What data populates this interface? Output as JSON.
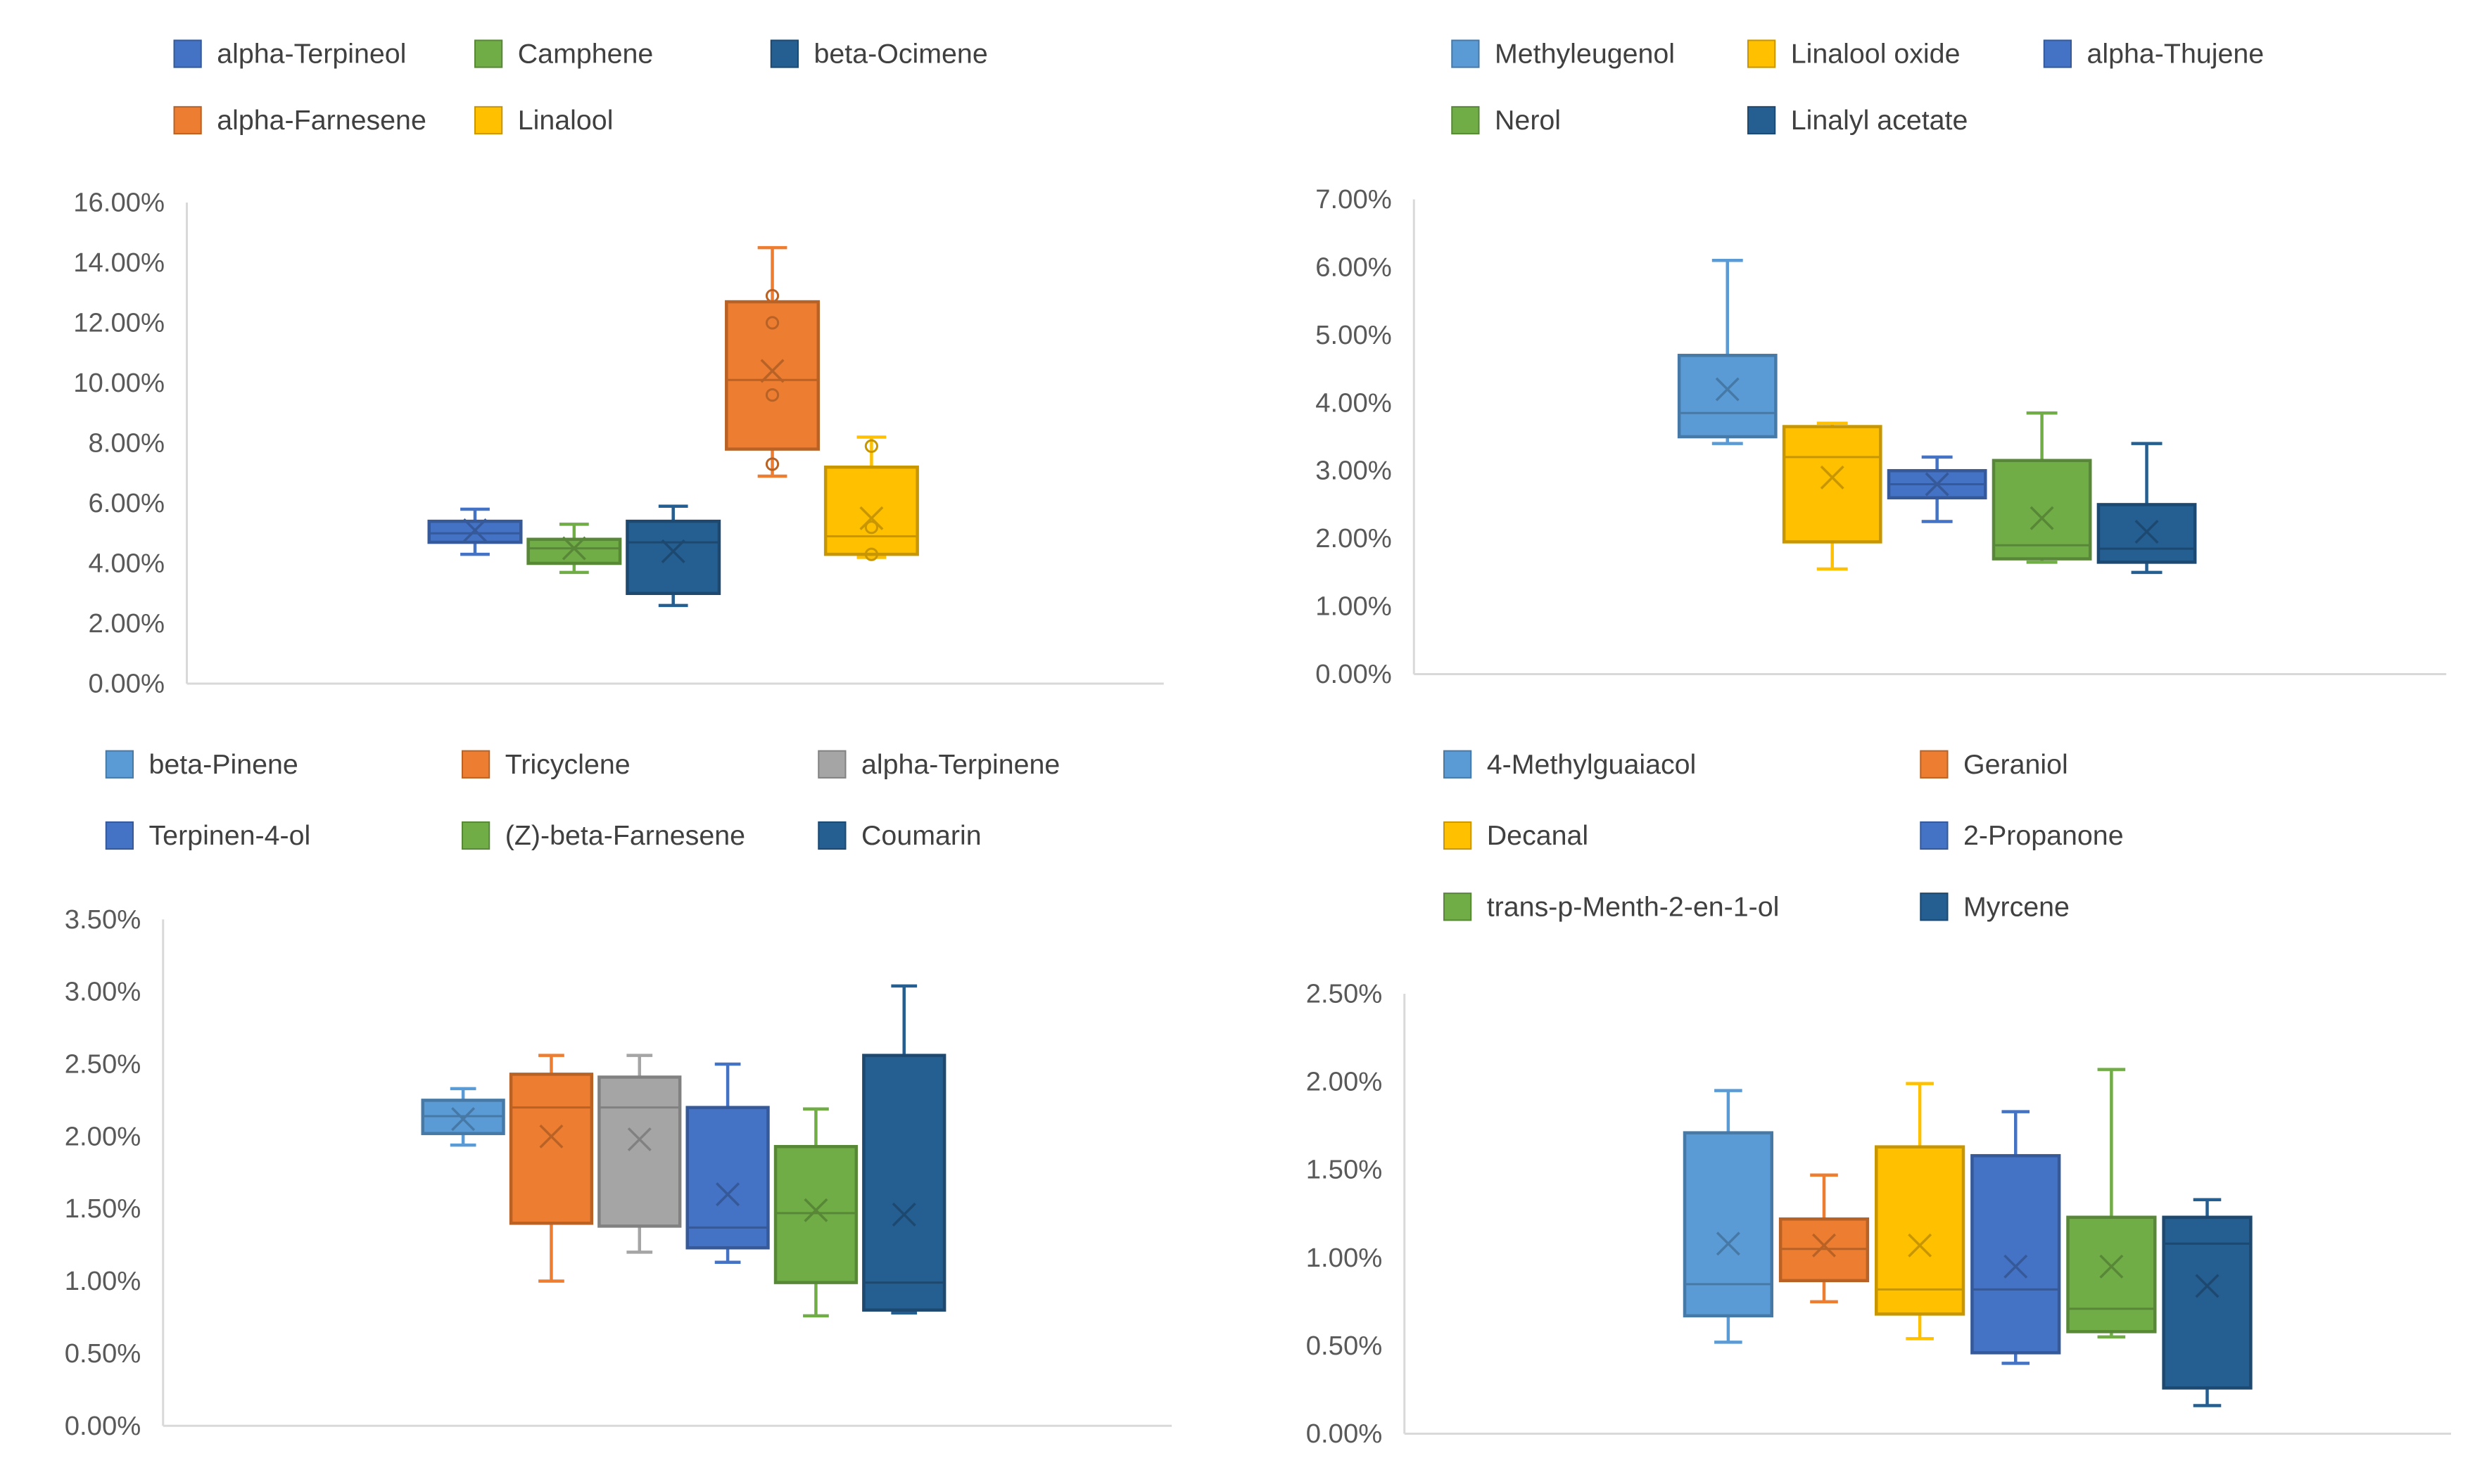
{
  "colors": {
    "axis": "#d9d9d9",
    "tick_text": "#595959",
    "legend_text": "#404040",
    "light_blue": "#5b9bd5",
    "orange": "#ed7d31",
    "gray": "#a5a5a5",
    "gold": "#ffc000",
    "blue": "#4472c4",
    "green": "#70ad47",
    "navy": "#255e91"
  },
  "chart_data": [
    {
      "type": "boxplot",
      "legend_position": "top",
      "grid": false,
      "ylim": [
        0,
        0.16
      ],
      "yticks": [
        "0.00%",
        "2.00%",
        "4.00%",
        "6.00%",
        "8.00%",
        "10.00%",
        "12.00%",
        "14.00%",
        "16.00%"
      ],
      "series": [
        {
          "name": "alpha-Terpineol",
          "color": "#4472c4",
          "min": 0.043,
          "q1": 0.047,
          "median": 0.05,
          "q3": 0.054,
          "max": 0.058,
          "mean": 0.051,
          "outliers": []
        },
        {
          "name": "Camphene",
          "color": "#70ad47",
          "min": 0.037,
          "q1": 0.04,
          "median": 0.045,
          "q3": 0.048,
          "max": 0.053,
          "mean": 0.045,
          "outliers": []
        },
        {
          "name": "beta-Ocimene",
          "color": "#255e91",
          "min": 0.026,
          "q1": 0.03,
          "median": 0.047,
          "q3": 0.054,
          "max": 0.059,
          "mean": 0.044,
          "outliers": []
        },
        {
          "name": "alpha-Farnesene",
          "color": "#ed7d31",
          "min": 0.069,
          "q1": 0.078,
          "median": 0.101,
          "q3": 0.127,
          "max": 0.145,
          "mean": 0.104,
          "outliers": [
            0.073,
            0.096,
            0.12,
            0.129
          ]
        },
        {
          "name": "Linalool",
          "color": "#ffc000",
          "min": 0.042,
          "q1": 0.043,
          "median": 0.049,
          "q3": 0.072,
          "max": 0.082,
          "mean": 0.055,
          "outliers": [
            0.043,
            0.052,
            0.079
          ]
        }
      ]
    },
    {
      "type": "boxplot",
      "legend_position": "top",
      "grid": false,
      "ylim": [
        0,
        0.07
      ],
      "yticks": [
        "0.00%",
        "1.00%",
        "2.00%",
        "3.00%",
        "4.00%",
        "5.00%",
        "6.00%",
        "7.00%"
      ],
      "series": [
        {
          "name": "Methyleugenol",
          "color": "#5b9bd5",
          "min": 0.034,
          "q1": 0.035,
          "median": 0.0385,
          "q3": 0.047,
          "max": 0.061,
          "mean": 0.042,
          "outliers": []
        },
        {
          "name": "Linalool oxide",
          "color": "#ffc000",
          "min": 0.0155,
          "q1": 0.0195,
          "median": 0.032,
          "q3": 0.0365,
          "max": 0.037,
          "mean": 0.029,
          "outliers": []
        },
        {
          "name": "alpha-Thujene",
          "color": "#4472c4",
          "min": 0.0225,
          "q1": 0.026,
          "median": 0.028,
          "q3": 0.03,
          "max": 0.032,
          "mean": 0.028,
          "outliers": []
        },
        {
          "name": "Nerol",
          "color": "#70ad47",
          "min": 0.0165,
          "q1": 0.017,
          "median": 0.019,
          "q3": 0.0315,
          "max": 0.0385,
          "mean": 0.023,
          "outliers": []
        },
        {
          "name": "Linalyl acetate",
          "color": "#255e91",
          "min": 0.015,
          "q1": 0.0165,
          "median": 0.0185,
          "q3": 0.025,
          "max": 0.034,
          "mean": 0.021,
          "outliers": []
        }
      ]
    },
    {
      "type": "boxplot",
      "legend_position": "top",
      "grid": false,
      "ylim": [
        0,
        0.035
      ],
      "yticks": [
        "0.00%",
        "0.50%",
        "1.00%",
        "1.50%",
        "2.00%",
        "2.50%",
        "3.00%",
        "3.50%"
      ],
      "series": [
        {
          "name": "beta-Pinene",
          "color": "#5b9bd5",
          "min": 0.0194,
          "q1": 0.0202,
          "median": 0.0214,
          "q3": 0.0225,
          "max": 0.0233,
          "mean": 0.0212,
          "outliers": []
        },
        {
          "name": "Tricyclene",
          "color": "#ed7d31",
          "min": 0.01,
          "q1": 0.014,
          "median": 0.022,
          "q3": 0.0243,
          "max": 0.0256,
          "mean": 0.02,
          "outliers": []
        },
        {
          "name": "alpha-Terpinene",
          "color": "#a5a5a5",
          "min": 0.012,
          "q1": 0.0138,
          "median": 0.022,
          "q3": 0.0241,
          "max": 0.0256,
          "mean": 0.0198,
          "outliers": []
        },
        {
          "name": "Terpinen-4-ol",
          "color": "#4472c4",
          "min": 0.0113,
          "q1": 0.0123,
          "median": 0.0137,
          "q3": 0.022,
          "max": 0.025,
          "mean": 0.016,
          "outliers": []
        },
        {
          "name": "(Z)-beta-Farnesene",
          "color": "#70ad47",
          "min": 0.0076,
          "q1": 0.0099,
          "median": 0.0147,
          "q3": 0.0193,
          "max": 0.0219,
          "mean": 0.0149,
          "outliers": []
        },
        {
          "name": "Coumarin",
          "color": "#255e91",
          "min": 0.0078,
          "q1": 0.008,
          "median": 0.0099,
          "q3": 0.0256,
          "max": 0.0304,
          "mean": 0.0146,
          "outliers": []
        }
      ]
    },
    {
      "type": "boxplot",
      "legend_position": "top",
      "grid": false,
      "ylim": [
        0,
        0.025
      ],
      "yticks": [
        "0.00%",
        "0.50%",
        "1.00%",
        "1.50%",
        "2.00%",
        "2.50%"
      ],
      "series": [
        {
          "name": "4-Methylguaiacol",
          "color": "#5b9bd5",
          "min": 0.0052,
          "q1": 0.0067,
          "median": 0.0085,
          "q3": 0.0171,
          "max": 0.0195,
          "mean": 0.0108,
          "outliers": []
        },
        {
          "name": "Geraniol",
          "color": "#ed7d31",
          "min": 0.0075,
          "q1": 0.0087,
          "median": 0.0105,
          "q3": 0.0122,
          "max": 0.0147,
          "mean": 0.0107,
          "outliers": []
        },
        {
          "name": "Decanal",
          "color": "#ffc000",
          "min": 0.0054,
          "q1": 0.0068,
          "median": 0.0082,
          "q3": 0.0163,
          "max": 0.0199,
          "mean": 0.0107,
          "outliers": []
        },
        {
          "name": "2-Propanone",
          "color": "#4472c4",
          "min": 0.004,
          "q1": 0.0046,
          "median": 0.0082,
          "q3": 0.0158,
          "max": 0.0183,
          "mean": 0.0095,
          "outliers": []
        },
        {
          "name": "trans-p-Menth-2-en-1-ol",
          "color": "#70ad47",
          "min": 0.0055,
          "q1": 0.0058,
          "median": 0.0071,
          "q3": 0.0123,
          "max": 0.0207,
          "mean": 0.0095,
          "outliers": []
        },
        {
          "name": "Myrcene",
          "color": "#255e91",
          "min": 0.0016,
          "q1": 0.0026,
          "median": 0.0108,
          "q3": 0.0123,
          "max": 0.0133,
          "mean": 0.0084,
          "outliers": []
        }
      ]
    }
  ]
}
